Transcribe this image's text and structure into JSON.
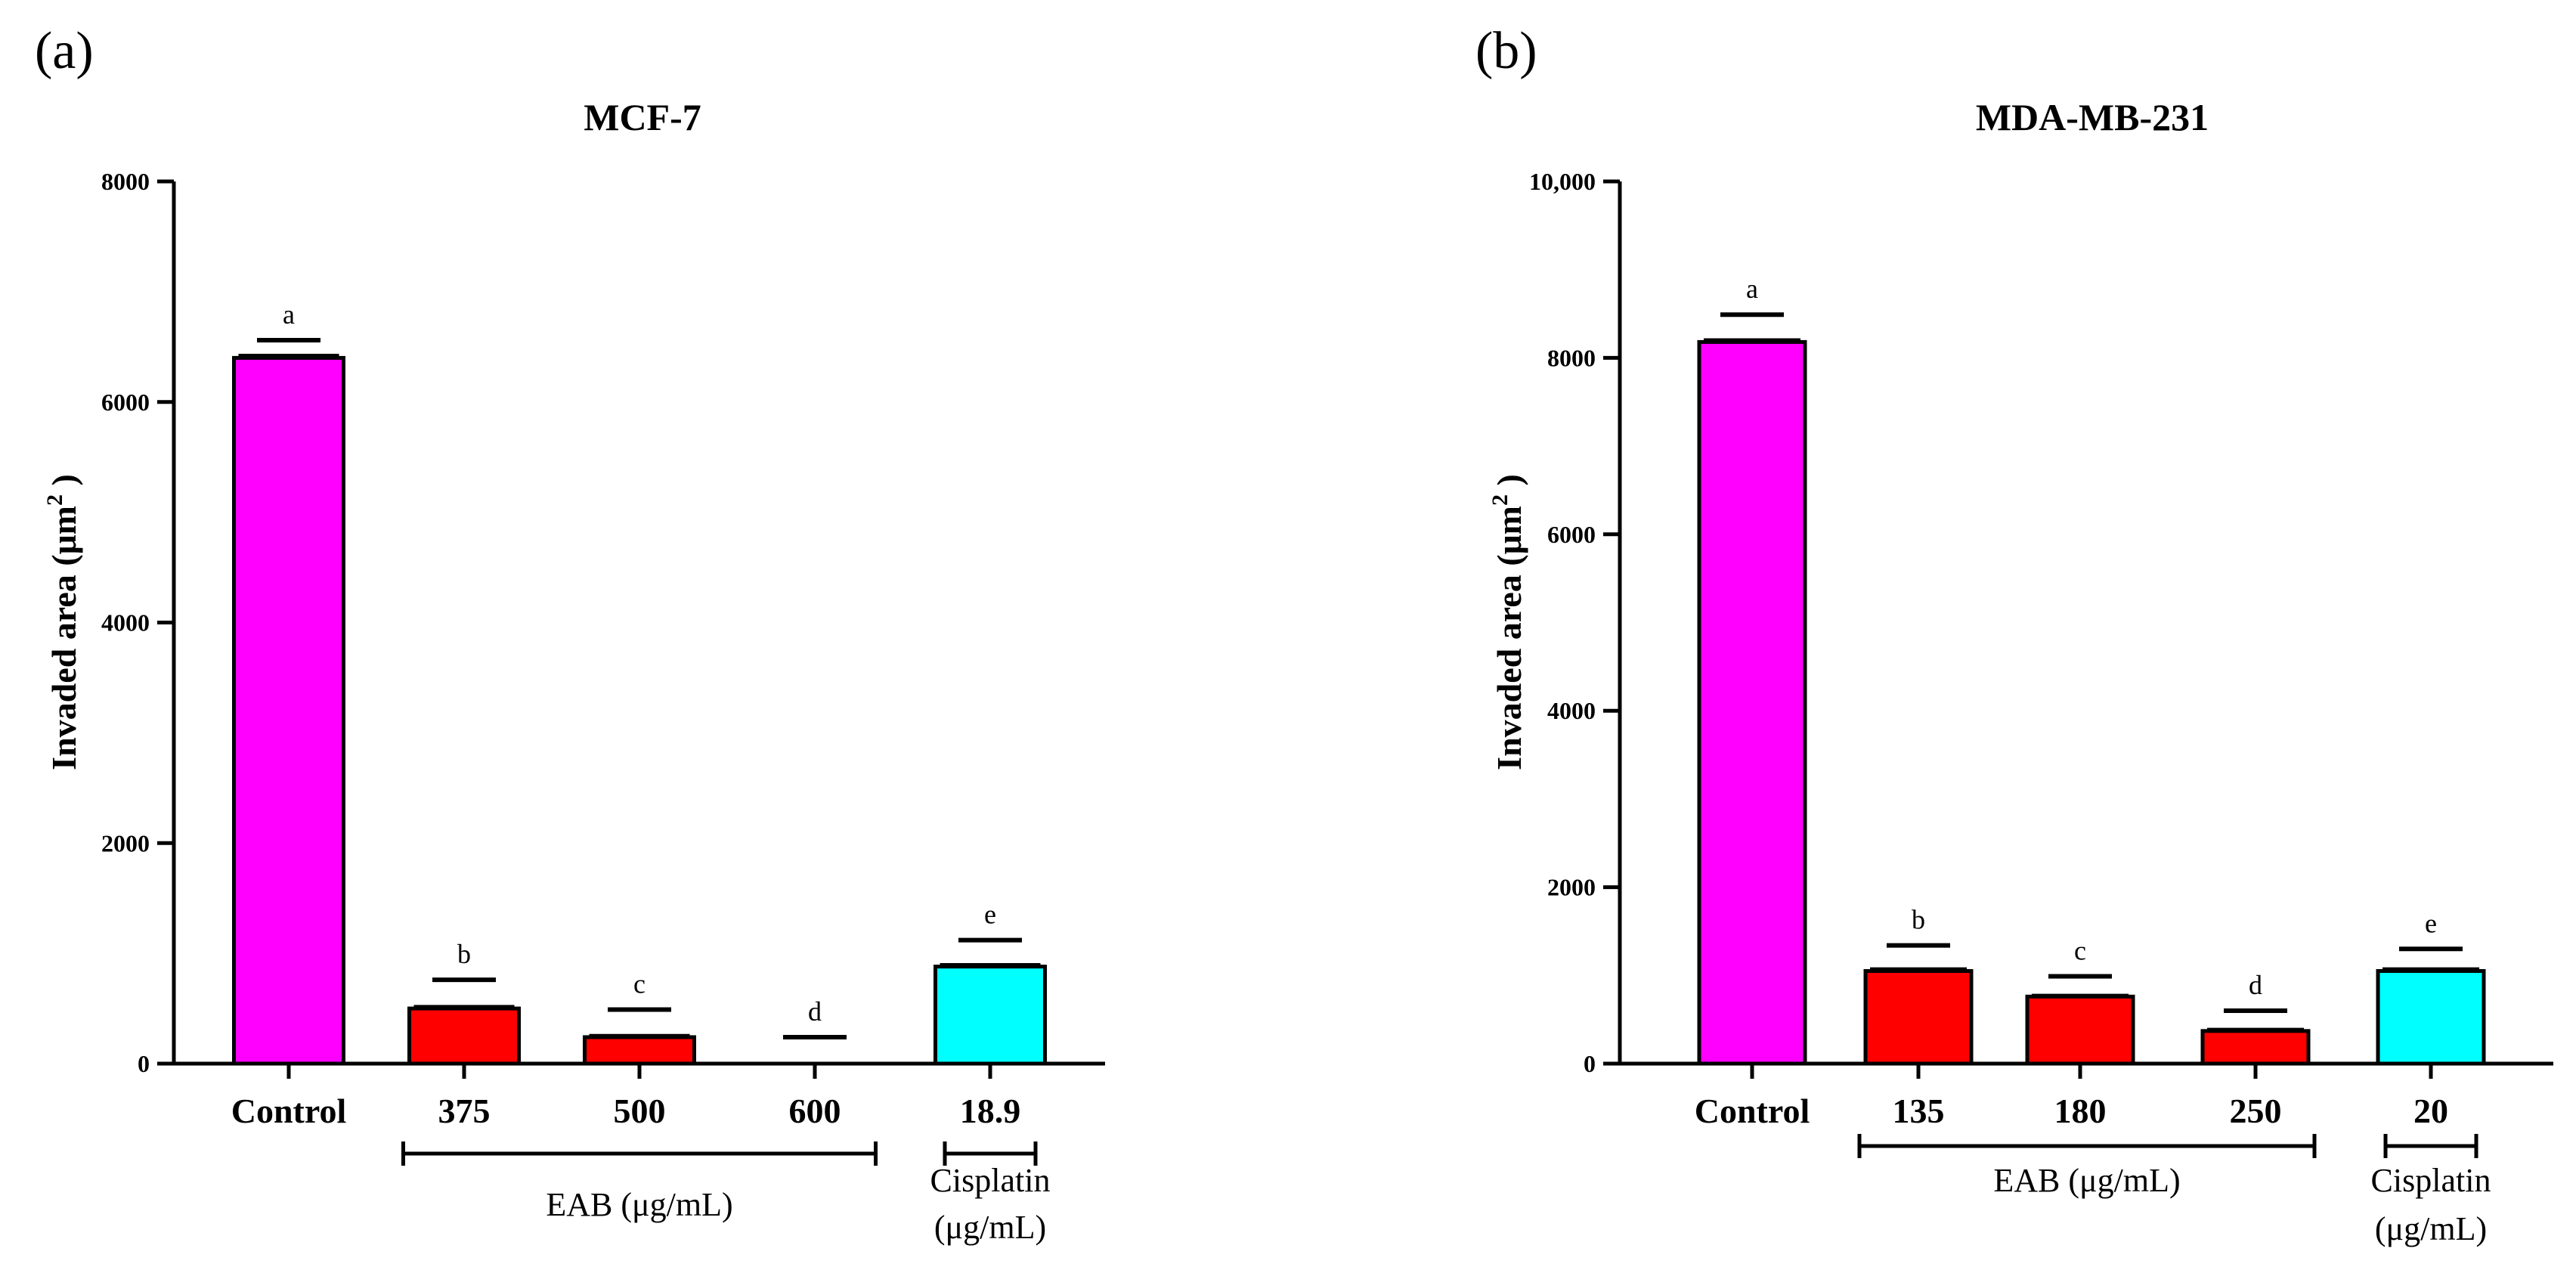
{
  "chart_data": [
    {
      "panel": "(a)",
      "type": "bar",
      "title": "MCF-7",
      "ylabel": "Invaded area (μm",
      "ylabel_sup": "2",
      "ylabel_close": " )",
      "ylim": [
        0,
        8000
      ],
      "yticks": [
        0,
        2000,
        4000,
        6000,
        8000
      ],
      "ytick_labels": [
        "0",
        "2000",
        "4000",
        "6000",
        "8000"
      ],
      "categories": [
        "Control",
        "375",
        "500",
        "600",
        "18.9"
      ],
      "values": [
        6400,
        500,
        240,
        0,
        880
      ],
      "errors": [
        20,
        15,
        12,
        0,
        15
      ],
      "sig_letters": [
        "a",
        "b",
        "c",
        "d",
        "e"
      ],
      "sig_positions": [
        6560,
        760,
        490,
        240,
        1120
      ],
      "colors": [
        "#FF00FF",
        "#FF0000",
        "#FF0000",
        "#FF0000",
        "#00FFFF"
      ],
      "groups": [
        {
          "label": "EAB (μg/mL)",
          "start": 1,
          "end": 3
        },
        {
          "label": "Cisplatin",
          "label2": "(μg/mL)",
          "start": 4,
          "end": 4
        }
      ]
    },
    {
      "panel": "(b)",
      "type": "bar",
      "title": "MDA-MB-231",
      "ylabel": "Invaded area (μm",
      "ylabel_sup": "2",
      "ylabel_close": " )",
      "ylim": [
        0,
        10000
      ],
      "yticks": [
        0,
        2000,
        4000,
        6000,
        8000,
        10000
      ],
      "ytick_labels": [
        "0",
        "2000",
        "4000",
        "6000",
        "8000",
        "10,000"
      ],
      "categories": [
        "Control",
        "135",
        "180",
        "250",
        "20"
      ],
      "values": [
        8180,
        1050,
        760,
        370,
        1050
      ],
      "errors": [
        20,
        20,
        10,
        15,
        20
      ],
      "sig_letters": [
        "a",
        "b",
        "c",
        "d",
        "e"
      ],
      "sig_positions": [
        8490,
        1340,
        990,
        600,
        1300
      ],
      "colors": [
        "#FF00FF",
        "#FF0000",
        "#FF0000",
        "#FF0000",
        "#00FFFF"
      ],
      "groups": [
        {
          "label": "EAB (μg/mL)",
          "start": 1,
          "end": 3
        },
        {
          "label": "Cisplatin",
          "label2": "(μg/mL)",
          "start": 4,
          "end": 4
        }
      ]
    }
  ]
}
